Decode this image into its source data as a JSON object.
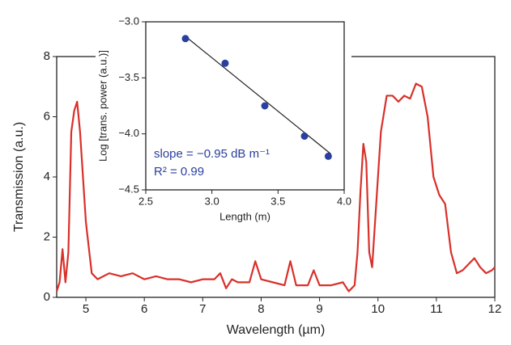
{
  "chart_data": [
    {
      "type": "line",
      "xlabel": "Wavelength (µm)",
      "ylabel": "Transmission (a.u.)",
      "xlim": [
        4.5,
        12
      ],
      "ylim": [
        0,
        8
      ],
      "xticks": [
        5,
        6,
        7,
        8,
        9,
        10,
        11,
        12
      ],
      "yticks": [
        0,
        2,
        4,
        6,
        8
      ],
      "series": [
        {
          "color": "#d9302a",
          "x": [
            4.5,
            4.55,
            4.6,
            4.65,
            4.7,
            4.75,
            4.8,
            4.85,
            4.9,
            5.0,
            5.1,
            5.2,
            5.4,
            5.6,
            5.8,
            6.0,
            6.2,
            6.4,
            6.6,
            6.8,
            7.0,
            7.2,
            7.3,
            7.4,
            7.5,
            7.6,
            7.8,
            7.9,
            8.0,
            8.2,
            8.4,
            8.5,
            8.6,
            8.8,
            8.9,
            9.0,
            9.2,
            9.4,
            9.5,
            9.6,
            9.65,
            9.7,
            9.75,
            9.8,
            9.85,
            9.9,
            9.95,
            10.05,
            10.15,
            10.25,
            10.35,
            10.45,
            10.55,
            10.65,
            10.75,
            10.85,
            10.95,
            11.05,
            11.15,
            11.25,
            11.35,
            11.45,
            11.55,
            11.65,
            11.75,
            11.85,
            11.95,
            12.0
          ],
          "values": [
            0.2,
            0.5,
            1.6,
            0.5,
            1.5,
            5.5,
            6.2,
            6.5,
            5.5,
            2.5,
            0.8,
            0.6,
            0.8,
            0.7,
            0.8,
            0.6,
            0.7,
            0.6,
            0.6,
            0.5,
            0.6,
            0.6,
            0.8,
            0.3,
            0.6,
            0.5,
            0.5,
            1.2,
            0.6,
            0.5,
            0.4,
            1.2,
            0.4,
            0.4,
            0.9,
            0.4,
            0.4,
            0.5,
            0.2,
            0.4,
            1.5,
            3.5,
            5.1,
            4.5,
            1.5,
            1.0,
            2.5,
            5.5,
            6.7,
            6.7,
            6.5,
            6.7,
            6.6,
            7.1,
            7.0,
            6.0,
            4.0,
            3.4,
            3.1,
            1.5,
            0.8,
            0.9,
            1.1,
            1.3,
            1.0,
            0.8,
            0.9,
            1.0
          ]
        }
      ]
    },
    {
      "type": "scatter",
      "xlabel": "Length (m)",
      "ylabel": "Log [trans. power (a.u.)]",
      "xlim": [
        2.5,
        4.0
      ],
      "ylim": [
        -4.5,
        -3.0
      ],
      "xticks": [
        2.5,
        {
          "value": 3,
          "label": "3.0"
        },
        3.5,
        {
          "value": 4,
          "label": "4.0"
        }
      ],
      "yticks": [
        {
          "value": -3,
          "label": "−3.0"
        },
        {
          "value": -3.5,
          "label": "−3.5"
        },
        {
          "value": -4,
          "label": "−4.0"
        },
        {
          "value": -4.5,
          "label": "−4.5"
        }
      ],
      "color": "#2a3fa0",
      "x": [
        2.8,
        3.1,
        3.4,
        3.7,
        3.88
      ],
      "values": [
        -3.15,
        -3.37,
        -3.75,
        -4.02,
        -4.2
      ],
      "trend_x": [
        2.8,
        3.9
      ],
      "trend_y": [
        -3.13,
        -4.18
      ],
      "annotations": [
        "slope = −0.95 dB m⁻¹",
        "R² = 0.99"
      ]
    }
  ]
}
